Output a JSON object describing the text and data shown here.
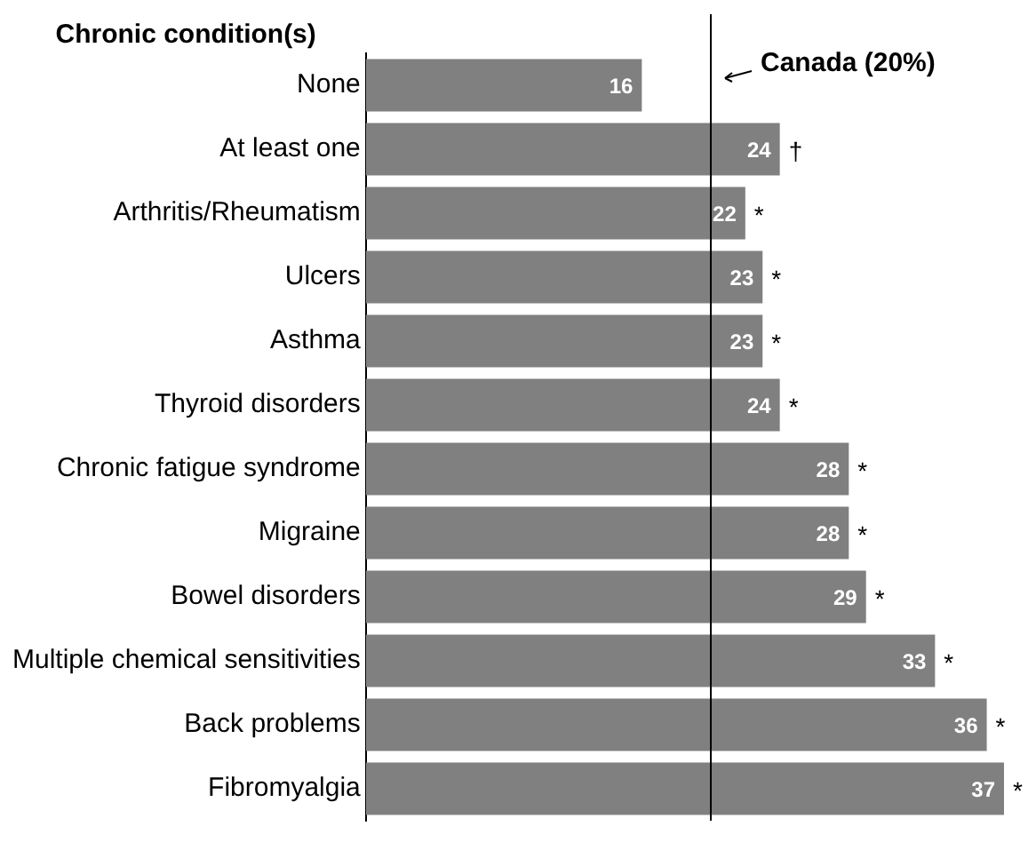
{
  "chart_data": {
    "type": "bar",
    "orientation": "horizontal",
    "ylabel": "Chronic condition(s)",
    "categories": [
      "None",
      "At least one",
      "Arthritis/Rheumatism",
      "Ulcers",
      "Asthma",
      "Thyroid disorders",
      "Chronic fatigue syndrome",
      "Migraine",
      "Bowel disorders",
      "Multiple chemical sensitivities",
      "Back problems",
      "Fibromyalgia"
    ],
    "values": [
      16,
      24,
      22,
      23,
      23,
      24,
      28,
      28,
      29,
      33,
      36,
      37
    ],
    "color": "#808080",
    "data_labels": true,
    "xlim": [
      0,
      37
    ],
    "ref_lines": [
      {
        "axis": "x",
        "value": 20,
        "label": "Canada (20%)",
        "color": "#000000"
      }
    ],
    "annotations": [
      {
        "text": "†",
        "x": 24,
        "y": "At least one"
      },
      {
        "text": "*",
        "x": 22,
        "y": "Arthritis/Rheumatism"
      },
      {
        "text": "*",
        "x": 23,
        "y": "Ulcers"
      },
      {
        "text": "*",
        "x": 23,
        "y": "Asthma"
      },
      {
        "text": "*",
        "x": 24,
        "y": "Thyroid disorders"
      },
      {
        "text": "*",
        "x": 28,
        "y": "Chronic fatigue syndrome"
      },
      {
        "text": "*",
        "x": 28,
        "y": "Migraine"
      },
      {
        "text": "*",
        "x": 29,
        "y": "Bowel disorders"
      },
      {
        "text": "*",
        "x": 33,
        "y": "Multiple chemical sensitivities"
      },
      {
        "text": "*",
        "x": 36,
        "y": "Back problems"
      },
      {
        "text": "*",
        "x": 37,
        "y": "Fibromyalgia"
      }
    ],
    "legend": false,
    "grid": false
  }
}
